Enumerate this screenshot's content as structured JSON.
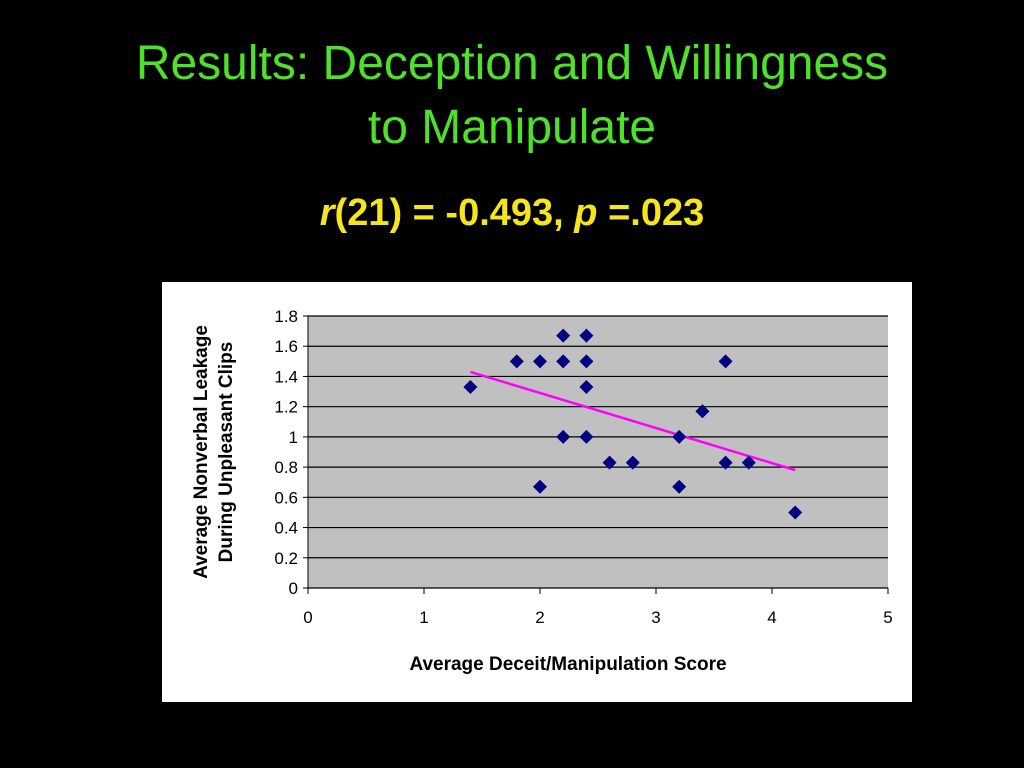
{
  "slide": {
    "title_line1": "Results: Deception and Willingness",
    "title_line2": "to Manipulate",
    "stat": {
      "r_symbol": "r",
      "r_rest": "(21) = -0.493, ",
      "p_symbol": "p",
      "p_rest": " =.023"
    }
  },
  "colors": {
    "title": "#4fe02a",
    "stat": "#f5e51b",
    "plot_area": "#c0c0c0",
    "marker": "#000080",
    "trendline": "#ff00ff"
  },
  "chart_data": {
    "type": "scatter",
    "xlabel": "Average Deceit/Manipulation Score",
    "ylabel_line1": "Average Nonverbal Leakage",
    "ylabel_line2": "During Unpleasant Clips",
    "xlim": [
      0,
      5
    ],
    "ylim": [
      0,
      1.8
    ],
    "x_ticks": [
      "0",
      "1",
      "2",
      "3",
      "4",
      "5"
    ],
    "y_ticks": [
      "0",
      "0.2",
      "0.4",
      "0.6",
      "0.8",
      "1",
      "1.2",
      "1.4",
      "1.6",
      "1.8"
    ],
    "grid": true,
    "legend": "none",
    "marker": "diamond",
    "points": [
      [
        1.4,
        1.33
      ],
      [
        1.8,
        1.5
      ],
      [
        2.0,
        1.5
      ],
      [
        2.0,
        0.67
      ],
      [
        2.2,
        1.67
      ],
      [
        2.2,
        1.5
      ],
      [
        2.2,
        1.0
      ],
      [
        2.4,
        1.67
      ],
      [
        2.4,
        1.5
      ],
      [
        2.4,
        1.33
      ],
      [
        2.4,
        1.0
      ],
      [
        2.6,
        0.83
      ],
      [
        2.8,
        0.83
      ],
      [
        3.2,
        1.0
      ],
      [
        3.2,
        0.67
      ],
      [
        3.4,
        1.17
      ],
      [
        3.6,
        1.5
      ],
      [
        3.6,
        0.83
      ],
      [
        3.8,
        0.83
      ],
      [
        4.2,
        0.5
      ]
    ],
    "trendline": {
      "type": "linear",
      "x": [
        1.4,
        4.2
      ],
      "y": [
        1.43,
        0.78
      ]
    }
  }
}
